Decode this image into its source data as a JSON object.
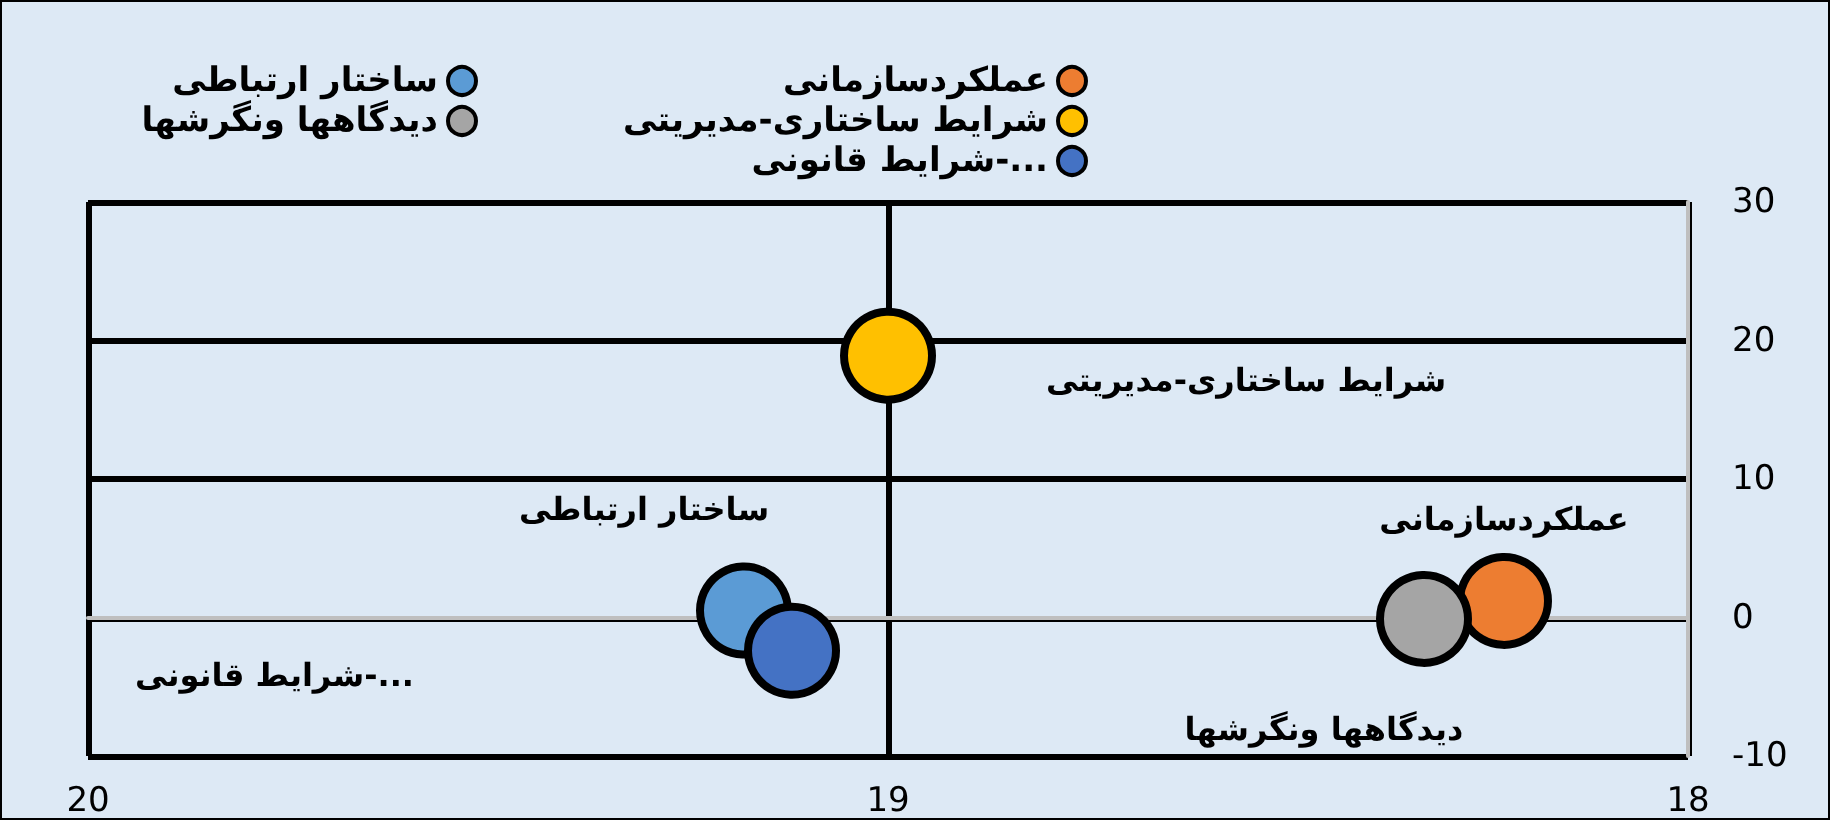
{
  "chart_data": {
    "type": "scatter",
    "series": [
      {
        "name": "عملکردسازمانی",
        "color": "#ed7d31",
        "x": [
          18.23
        ],
        "values": [
          1.2
        ]
      },
      {
        "name": "ساختار ارتباطی",
        "color": "#5b9bd5",
        "x": [
          19.18
        ],
        "values": [
          0.5
        ]
      },
      {
        "name": "شرایط ساختاری-مدیریتی",
        "color": "#ffc000",
        "x": [
          19.0
        ],
        "values": [
          18.9
        ]
      },
      {
        "name": "دیدگاهها ونگرشها",
        "color": "#a5a5a5",
        "x": [
          18.33
        ],
        "values": [
          -0.1
        ]
      },
      {
        "name": "شرایط قانونی-...",
        "color": "#4472c4",
        "x": [
          19.12
        ],
        "values": [
          -2.4
        ]
      }
    ],
    "xlim": [
      20,
      18
    ],
    "xticks": [
      20,
      19,
      18
    ],
    "ylim": [
      -10,
      30
    ],
    "yticks": [
      -10,
      0,
      10,
      20,
      30
    ],
    "grid": true,
    "legend": "top",
    "marker": "circle"
  }
}
